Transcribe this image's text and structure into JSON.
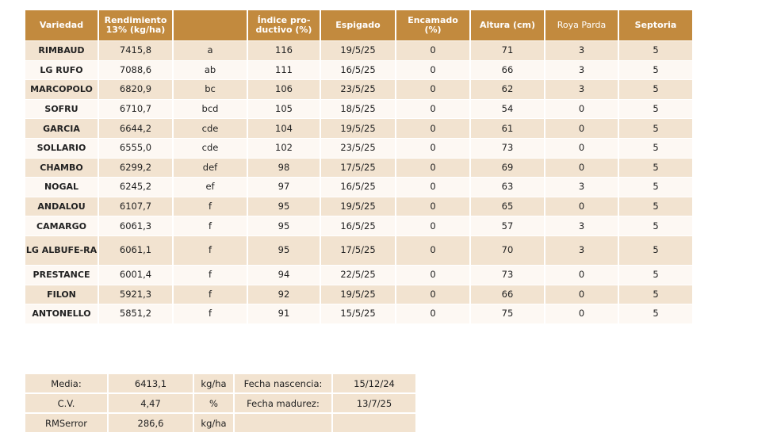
{
  "colors": {
    "header": "#C28A3E",
    "row_odd": "#F2E3D0",
    "row_even": "#FDF8F3"
  },
  "table": {
    "headers": [
      "Variedad",
      "Rendimiento 13% (kg/ha)",
      "",
      "Índice pro-ductivo (%)",
      "Espigado",
      "Encamado (%)",
      "Altura (cm)",
      "Roya Parda",
      "Septoria"
    ],
    "rows": [
      [
        "RIMBAUD",
        "7415,8",
        "a",
        "116",
        "19/5/25",
        "0",
        "71",
        "3",
        "5"
      ],
      [
        "LG RUFO",
        "7088,6",
        "ab",
        "111",
        "16/5/25",
        "0",
        "66",
        "3",
        "5"
      ],
      [
        "MARCOPOLO",
        "6820,9",
        "bc",
        "106",
        "23/5/25",
        "0",
        "62",
        "3",
        "5"
      ],
      [
        "SOFRU",
        "6710,7",
        "bcd",
        "105",
        "18/5/25",
        "0",
        "54",
        "0",
        "5"
      ],
      [
        "GARCIA",
        "6644,2",
        "cde",
        "104",
        "19/5/25",
        "0",
        "61",
        "0",
        "5"
      ],
      [
        "SOLLARIO",
        "6555,0",
        "cde",
        "102",
        "23/5/25",
        "0",
        "73",
        "0",
        "5"
      ],
      [
        "CHAMBO",
        "6299,2",
        "def",
        "98",
        "17/5/25",
        "0",
        "69",
        "0",
        "5"
      ],
      [
        "NOGAL",
        "6245,2",
        "ef",
        "97",
        "16/5/25",
        "0",
        "63",
        "3",
        "5"
      ],
      [
        "ANDALOU",
        "6107,7",
        "f",
        "95",
        "19/5/25",
        "0",
        "65",
        "0",
        "5"
      ],
      [
        "CAMARGO",
        "6061,3",
        "f",
        "95",
        "16/5/25",
        "0",
        "57",
        "3",
        "5"
      ],
      [
        "LG ALBUFE-RA",
        "6061,1",
        "f",
        "95",
        "17/5/25",
        "0",
        "70",
        "3",
        "5"
      ],
      [
        "PRESTANCE",
        "6001,4",
        "f",
        "94",
        "22/5/25",
        "0",
        "73",
        "0",
        "5"
      ],
      [
        "FILON",
        "5921,3",
        "f",
        "92",
        "19/5/25",
        "0",
        "66",
        "0",
        "5"
      ],
      [
        "ANTONELLO",
        "5851,2",
        "f",
        "91",
        "15/5/25",
        "0",
        "75",
        "0",
        "5"
      ]
    ]
  },
  "summary": [
    [
      "Media:",
      "6413,1",
      "kg/ha",
      "Fecha nascencia:",
      "15/12/24"
    ],
    [
      "C.V.",
      "4,47",
      "%",
      "Fecha madurez:",
      "13/7/25"
    ],
    [
      "RMSerror",
      "286,6",
      "kg/ha",
      "",
      ""
    ]
  ]
}
